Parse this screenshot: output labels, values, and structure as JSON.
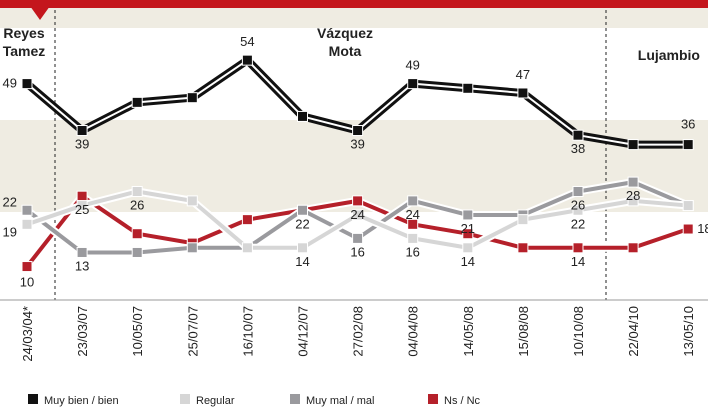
{
  "chart_data": {
    "type": "line",
    "annotations": [
      [
        "Reyes",
        "Tamez"
      ],
      [
        "Vázquez",
        "Mota"
      ],
      [
        "Lujambio"
      ]
    ],
    "categories": [
      "24/03/04*",
      "23/03/07",
      "10/05/07",
      "25/07/07",
      "16/10/07",
      "04/12/07",
      "27/02/08",
      "04/04/08",
      "14/05/08",
      "15/08/08",
      "10/10/08",
      "22/04/10",
      "13/05/10"
    ],
    "ylim": [
      5,
      60
    ],
    "series": [
      {
        "name": "Muy bien / bien",
        "color": "#111111",
        "values": [
          49,
          39,
          45,
          46,
          54,
          42,
          39,
          49,
          48,
          47,
          38,
          36,
          36
        ],
        "value_labels": [
          "49",
          "39",
          null,
          null,
          "54",
          null,
          "39",
          "49",
          null,
          "47",
          "38",
          null,
          "36"
        ]
      },
      {
        "name": "Regular",
        "color": "#d6d6d6",
        "values": [
          19,
          23,
          26,
          24,
          14,
          14,
          21,
          16,
          14,
          20,
          22,
          24,
          23
        ],
        "value_labels": [
          "19",
          null,
          "26",
          null,
          null,
          "14",
          null,
          "16",
          "14",
          null,
          "22",
          null,
          null
        ]
      },
      {
        "name": "Muy mal / mal",
        "color": "#9a9a9e",
        "values": [
          22,
          13,
          13,
          14,
          14,
          22,
          16,
          24,
          21,
          21,
          26,
          28,
          23
        ],
        "value_labels": [
          "22",
          "13",
          null,
          null,
          null,
          "22",
          "16",
          "24",
          "21",
          null,
          "26",
          "28",
          null
        ]
      },
      {
        "name": "Ns / Nc",
        "color": "#b5202a",
        "values": [
          10,
          25,
          17,
          15,
          20,
          22,
          24,
          19,
          17,
          14,
          14,
          14,
          18
        ],
        "value_labels": [
          "10",
          "25",
          null,
          null,
          null,
          null,
          "24",
          null,
          null,
          null,
          "14",
          null,
          "18"
        ]
      }
    ]
  }
}
